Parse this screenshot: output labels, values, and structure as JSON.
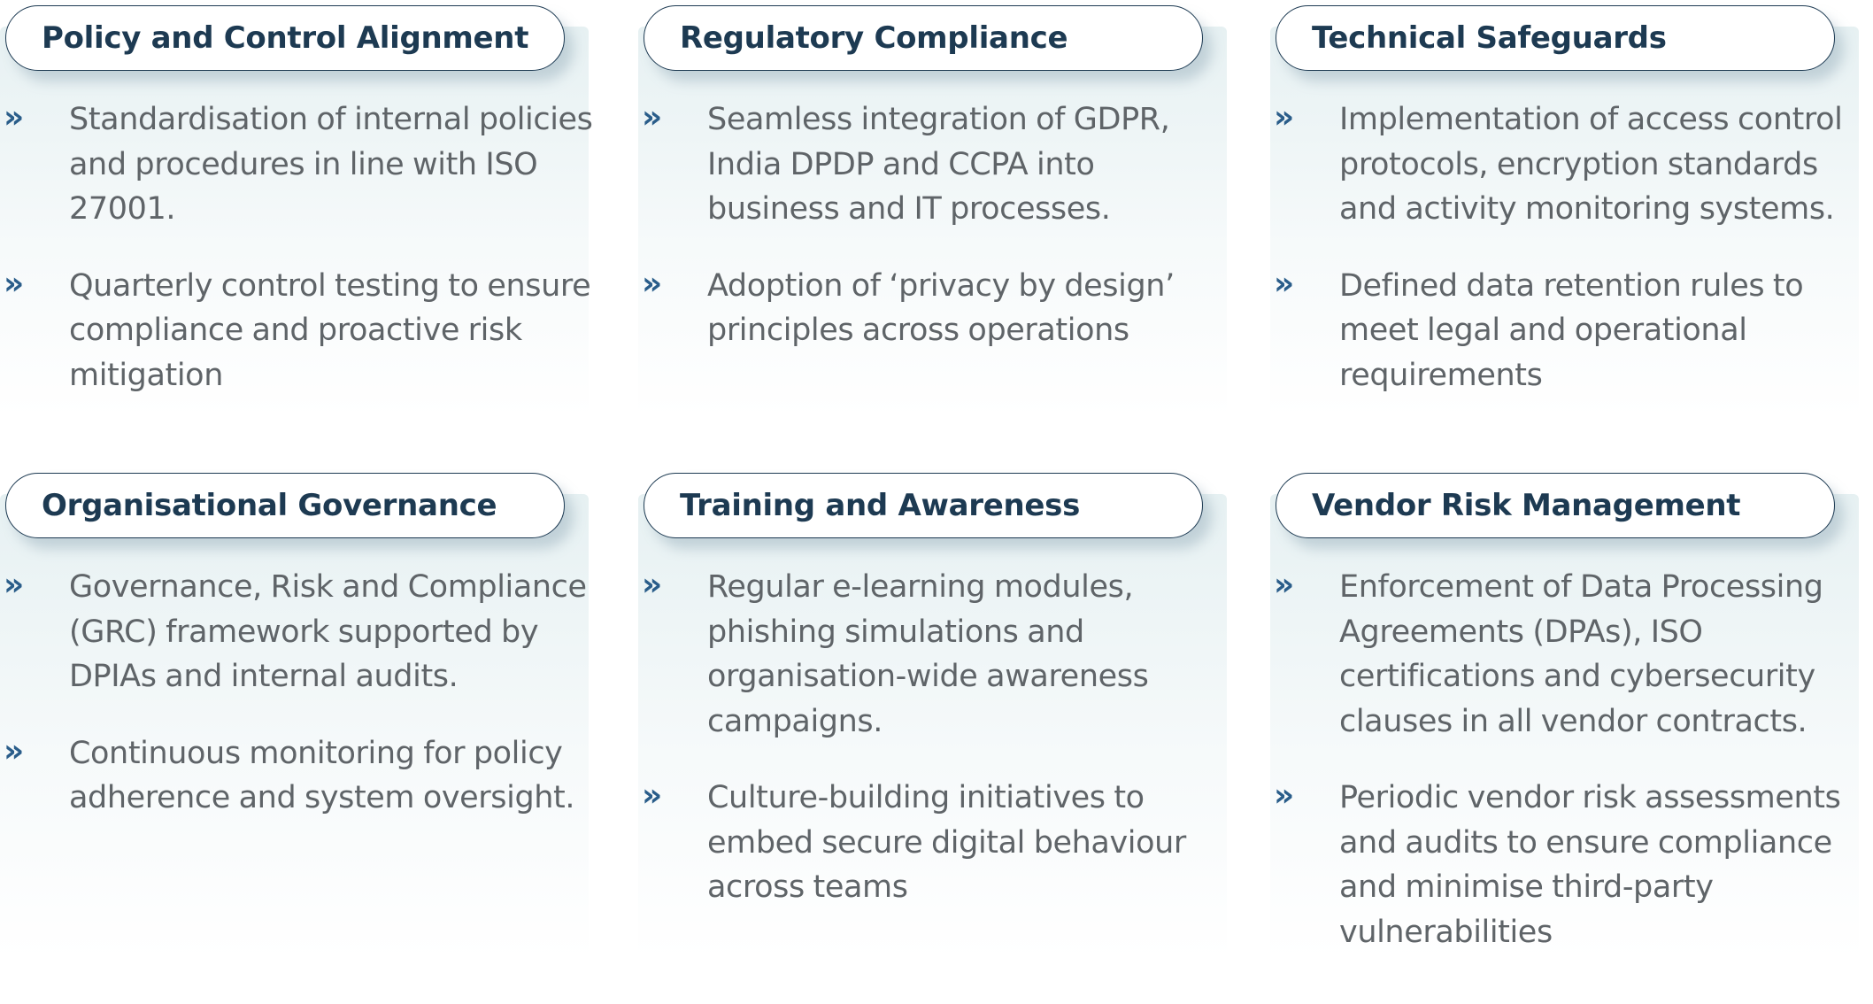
{
  "cards": [
    {
      "title": "Policy and Control Alignment",
      "bullets": [
        "Standardisation of internal policies and procedures in line with ISO 27001.",
        "Quarterly control testing to ensure compliance and proactive risk mitigation"
      ]
    },
    {
      "title": "Regulatory Compliance",
      "bullets": [
        "Seamless integration of GDPR, India DPDP and CCPA into business and IT processes.",
        "Adoption of ‘privacy by design’ principles across operations"
      ]
    },
    {
      "title": "Technical Safeguards",
      "bullets": [
        "Implementation of access control protocols, encryption standards and activity monitoring systems.",
        "Defined data retention rules to meet legal and operational requirements"
      ]
    },
    {
      "title": "Organisational Governance",
      "bullets": [
        "Governance, Risk and Compliance (GRC) framework supported by DPIAs and internal audits.",
        "Continuous monitoring for policy adherence and system oversight."
      ]
    },
    {
      "title": "Training and Awareness",
      "bullets": [
        "Regular e-learning modules, phishing simulations and organisation-wide awareness campaigns.",
        "Culture-building initiatives to embed secure digital behaviour across teams"
      ]
    },
    {
      "title": "Vendor Risk Management",
      "bullets": [
        "Enforcement of Data Processing Agreements (DPAs), ISO certifications and cybersecurity clauses in all vendor contracts.",
        "Periodic vendor risk assessments and audits to ensure compliance and minimise third-party vulnerabilities"
      ]
    }
  ],
  "bullet_marker": "»",
  "colors": {
    "title": "#1d3a52",
    "pill_border": "#1d3a52",
    "marker": "#2a5d8a",
    "body_text": "#5f6468",
    "panel_tint": "#e2eef0"
  }
}
